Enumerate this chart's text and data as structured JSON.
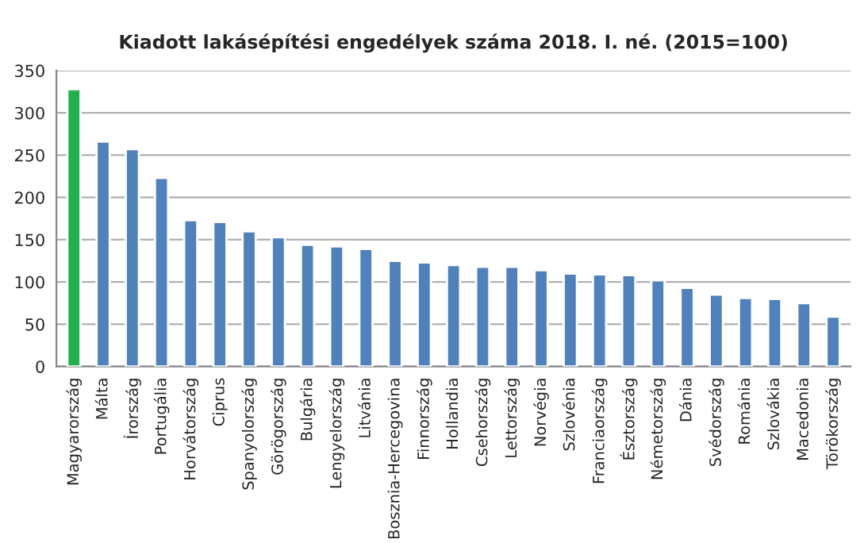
{
  "chart_data": {
    "type": "bar",
    "title": "Kiadott lakásépítési engedélyek száma 2018. I. né. (2015=100)",
    "categories": [
      "Magyarország",
      "Málta",
      "Írország",
      "Portugália",
      "Horvátország",
      "Ciprus",
      "Spanyolország",
      "Görögország",
      "Bulgária",
      "Lengyelország",
      "Litvánia",
      "Bosznia-Hercegovina",
      "Finnország",
      "Hollandia",
      "Csehország",
      "Lettország",
      "Norvégia",
      "Szlovénia",
      "Franciaország",
      "Észtország",
      "Németország",
      "Dánia",
      "Svédország",
      "Románia",
      "Szlovákia",
      "Macedonia",
      "Törökország"
    ],
    "values": [
      328,
      266,
      257,
      223,
      173,
      171,
      160,
      153,
      144,
      142,
      139,
      125,
      123,
      120,
      118,
      118,
      114,
      110,
      109,
      108,
      102,
      93,
      85,
      81,
      80,
      75,
      59
    ],
    "colors": [
      "#1fb14c",
      "#4f81bd",
      "#4f81bd",
      "#4f81bd",
      "#4f81bd",
      "#4f81bd",
      "#4f81bd",
      "#4f81bd",
      "#4f81bd",
      "#4f81bd",
      "#4f81bd",
      "#4f81bd",
      "#4f81bd",
      "#4f81bd",
      "#4f81bd",
      "#4f81bd",
      "#4f81bd",
      "#4f81bd",
      "#4f81bd",
      "#4f81bd",
      "#4f81bd",
      "#4f81bd",
      "#4f81bd",
      "#4f81bd",
      "#4f81bd",
      "#4f81bd",
      "#4f81bd"
    ],
    "ylim": [
      0,
      350
    ],
    "yticks": [
      0,
      50,
      100,
      150,
      200,
      250,
      300,
      350
    ],
    "grid": "y",
    "legend": false
  }
}
